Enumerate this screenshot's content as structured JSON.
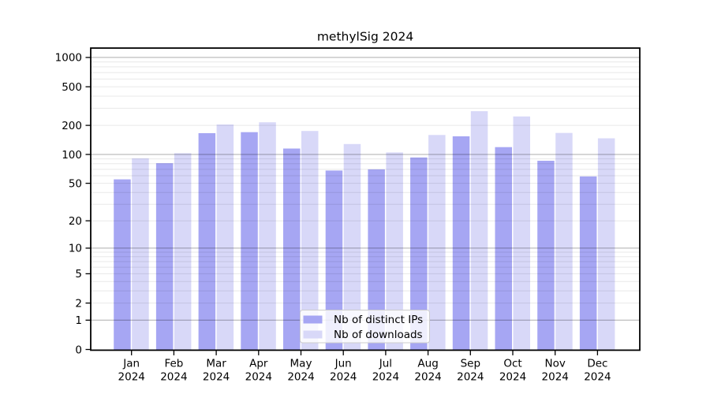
{
  "chart_data": {
    "type": "bar",
    "title": "methylSig 2024",
    "categories": [
      "Jan",
      "Feb",
      "Mar",
      "Apr",
      "May",
      "Jun",
      "Jul",
      "Aug",
      "Sep",
      "Oct",
      "Nov",
      "Dec"
    ],
    "category_year": "2024",
    "series": [
      {
        "name": "Nb of distinct IPs",
        "color": "#a6a6f3",
        "values": [
          55,
          81,
          166,
          170,
          115,
          68,
          70,
          93,
          154,
          119,
          86,
          59
        ]
      },
      {
        "name": "Nb of downloads",
        "color": "#d8d8f8",
        "values": [
          91,
          103,
          204,
          215,
          175,
          128,
          105,
          159,
          280,
          247,
          167,
          147
        ]
      }
    ],
    "y_axis": {
      "scale": "log10(value+1)",
      "tick_values": [
        1000,
        500,
        200,
        100,
        50,
        20,
        10,
        5,
        2,
        1,
        0
      ],
      "tick_labels": [
        "1000",
        "500",
        "200",
        "100",
        "50",
        "20",
        "10",
        "5",
        "2",
        "1",
        "0"
      ],
      "ylim": [
        0,
        1250
      ],
      "grid": true,
      "major_grid_values": [
        1,
        10,
        100,
        1000
      ]
    },
    "legend": {
      "location": "lower-center",
      "entries": [
        "Nb of distinct IPs",
        "Nb of downloads"
      ]
    },
    "colors": {
      "background": "#ffffff",
      "axis_box": "#000000",
      "major_grid": "rgba(0,0,0,0.32)",
      "minor_grid": "rgba(0,0,0,0.09)",
      "legend_border": "#cccccc",
      "legend_background": "rgba(255,255,255,0.82)"
    }
  }
}
